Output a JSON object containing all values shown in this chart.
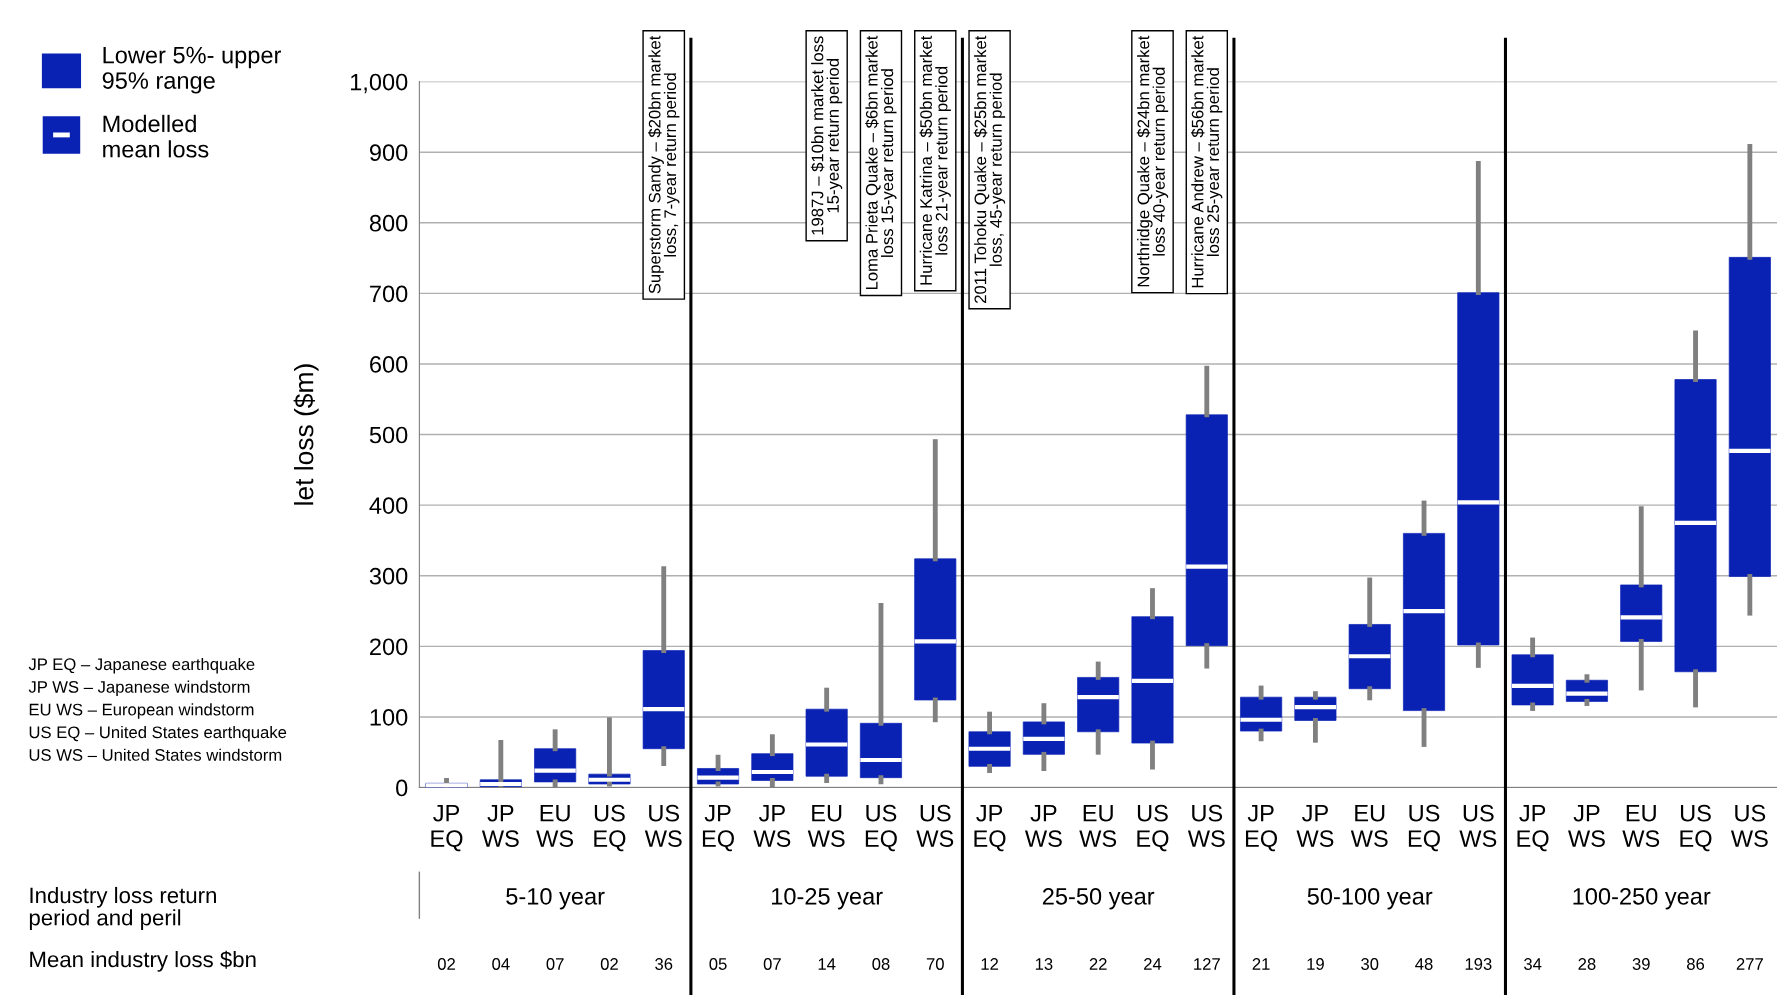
{
  "chart_data": {
    "type": "box",
    "ylabel": "let loss ($m)",
    "categories": [
      "JP EQ",
      "JP WS",
      "EU WS",
      "US EQ",
      "US WS",
      "JP EQ",
      "JP WS",
      "EU WS",
      "US EQ",
      "US WS",
      "JP EQ",
      "JP WS",
      "EU WS",
      "US EQ",
      "US WS",
      "JP EQ",
      "JP WS",
      "EU WS",
      "US EQ",
      "US WS",
      "JP EQ",
      "JP WS",
      "EU WS",
      "US EQ",
      "US WS"
    ],
    "ylim": [
      0,
      1000
    ],
    "yticks": [
      0,
      {
        "value": 100,
        "label": "100"
      },
      200,
      300,
      400,
      500,
      600,
      700,
      800,
      900,
      {
        "value": 1000,
        "label": "1,000"
      }
    ],
    "grid": "y",
    "legend": "top left",
    "series": [
      {
        "name": "Lower 5%- upper\n95% range",
        "color": "#0a22b4",
        "boxes": [
          {
            "low": 0,
            "q1": 0,
            "median": 3,
            "q3": 6,
            "high": 10
          },
          {
            "low": 0,
            "q1": 1,
            "median": 5,
            "q3": 11,
            "high": 64
          },
          {
            "low": 3,
            "q1": 8,
            "median": 24,
            "q3": 55,
            "high": 79
          },
          {
            "low": 5,
            "q1": 5,
            "median": 11,
            "q3": 19,
            "high": 96
          },
          {
            "low": 34,
            "q1": 55,
            "median": 111,
            "q3": 194,
            "high": 310
          },
          {
            "low": 5,
            "q1": 5,
            "median": 14,
            "q3": 27,
            "high": 43
          },
          {
            "low": 3,
            "q1": 10,
            "median": 22,
            "q3": 48,
            "high": 72
          },
          {
            "low": 10,
            "q1": 16,
            "median": 61,
            "q3": 111,
            "high": 138
          },
          {
            "low": 8,
            "q1": 14,
            "median": 39,
            "q3": 91,
            "high": 258
          },
          {
            "low": 96,
            "q1": 124,
            "median": 207,
            "q3": 324,
            "high": 490
          },
          {
            "low": 24,
            "q1": 30,
            "median": 55,
            "q3": 79,
            "high": 104
          },
          {
            "low": 27,
            "q1": 47,
            "median": 69,
            "q3": 93,
            "high": 116
          },
          {
            "low": 50,
            "q1": 79,
            "median": 128,
            "q3": 156,
            "high": 175
          },
          {
            "low": 29,
            "q1": 63,
            "median": 151,
            "q3": 242,
            "high": 279
          },
          {
            "low": 172,
            "q1": 201,
            "median": 313,
            "q3": 528,
            "high": 594
          },
          {
            "low": 69,
            "q1": 80,
            "median": 96,
            "q3": 128,
            "high": 141
          },
          {
            "low": 67,
            "q1": 95,
            "median": 114,
            "q3": 128,
            "high": 133
          },
          {
            "low": 127,
            "q1": 140,
            "median": 186,
            "q3": 231,
            "high": 294
          },
          {
            "low": 61,
            "q1": 109,
            "median": 250,
            "q3": 360,
            "high": 403
          },
          {
            "low": 173,
            "q1": 202,
            "median": 404,
            "q3": 701,
            "high": 884
          },
          {
            "low": 112,
            "q1": 117,
            "median": 144,
            "q3": 188,
            "high": 209
          },
          {
            "low": 119,
            "q1": 122,
            "median": 133,
            "q3": 152,
            "high": 157
          },
          {
            "low": 141,
            "q1": 207,
            "median": 241,
            "q3": 287,
            "high": 395
          },
          {
            "low": 117,
            "q1": 164,
            "median": 375,
            "q3": 578,
            "high": 644
          },
          {
            "low": 247,
            "q1": 299,
            "median": 477,
            "q3": 751,
            "high": 908
          }
        ]
      }
    ],
    "annotations": [
      "Superstorm Sandy – $20bn market\nloss, 7-year return period",
      "1987J – $10bn market loss\n15-year return period",
      "Loma Prieta Quake – $6bn market\nloss 15-year return period",
      "Hurricane Katrina – $50bn market\nloss 21-year return period",
      "2011 Tohoku Quake – $25bn market\nloss, 45-year return period",
      "Northridge Quake – $24bn market\nloss 40-year return period",
      "Hurricane Andrew – $56bn market\nloss 25-year return period",
      "JP EQ – Japanese earthquake",
      "JP WS – Japanese windstorm",
      "EU WS – European windstorm",
      "US EQ – United States earthquake",
      "US WS – United States windstorm",
      "Industry loss return\nperiod and peril",
      "Mean industry loss $bn",
      "5-10 year",
      "10-25 year",
      "25-50 year",
      "50-100 year",
      "100-250 year",
      "02",
      "04",
      "07",
      "02",
      "36",
      "05",
      "07",
      "14",
      "08",
      "70",
      "12",
      "13",
      "22",
      "24",
      "127",
      "21",
      "19",
      "30",
      "48",
      "193",
      "34",
      "28",
      "39",
      "86",
      "277",
      "Modelled\nmean loss"
    ]
  }
}
